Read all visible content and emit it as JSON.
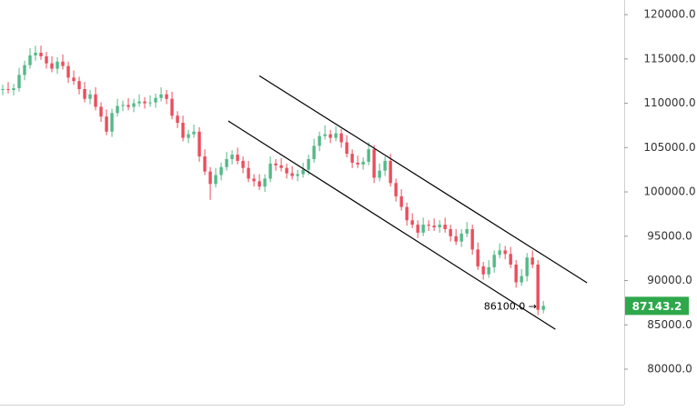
{
  "chart_data": {
    "type": "candlestick",
    "open": [
      111500,
      111600,
      111500,
      111700,
      113200,
      114300,
      115400,
      115700,
      115300,
      114500,
      113900,
      114700,
      114200,
      112900,
      112500,
      111600,
      110500,
      111000,
      109600,
      108500,
      106800,
      108900,
      109700,
      109800,
      109600,
      110000,
      110200,
      110000,
      110100,
      110600,
      111000,
      110500,
      108600,
      107800,
      106100,
      106500,
      106800,
      104000,
      102300,
      100900,
      101900,
      102800,
      103700,
      104200,
      103500,
      102700,
      101500,
      101200,
      100600,
      101500,
      103200,
      103000,
      102700,
      102100,
      101800,
      102000,
      102500,
      103700,
      105200,
      106300,
      106500,
      106100,
      106600,
      105600,
      104300,
      103300,
      103100,
      103400,
      104800,
      101600,
      102400,
      103500,
      101000,
      99500,
      98300,
      96800,
      96300,
      95400,
      96300,
      96200,
      96000,
      96300,
      95800,
      95000,
      94400,
      95300,
      95800,
      93500,
      91600,
      90700,
      91500,
      92900,
      93400,
      93000,
      91800,
      89800,
      90500,
      92600,
      91800,
      86700
    ],
    "high": [
      112100,
      112400,
      112200,
      114000,
      114800,
      116200,
      116500,
      116500,
      115800,
      115300,
      115200,
      115500,
      114700,
      113700,
      113000,
      112400,
      111500,
      111800,
      110100,
      109300,
      109400,
      110500,
      110300,
      110600,
      110500,
      111000,
      110700,
      110900,
      111100,
      111800,
      111500,
      111300,
      109100,
      108600,
      107000,
      107600,
      107300,
      104800,
      102800,
      102700,
      103300,
      104500,
      104700,
      105000,
      104000,
      103500,
      102000,
      102000,
      102000,
      104000,
      103700,
      103800,
      103200,
      102900,
      102500,
      103300,
      104200,
      106000,
      106800,
      107500,
      107000,
      107400,
      107100,
      106400,
      104800,
      104100,
      103900,
      105600,
      105300,
      103200,
      104000,
      104300,
      101500,
      100300,
      98800,
      97600,
      96800,
      97100,
      96800,
      97000,
      96800,
      97100,
      96300,
      95800,
      95800,
      96600,
      96300,
      94300,
      92100,
      92300,
      93400,
      94200,
      93900,
      93800,
      92300,
      91300,
      93100,
      93400,
      92300,
      87700
    ],
    "low": [
      110900,
      111100,
      110900,
      111300,
      112600,
      113900,
      114800,
      114900,
      113900,
      113500,
      113300,
      113800,
      112300,
      112100,
      111000,
      110100,
      109900,
      109200,
      107900,
      106400,
      106200,
      108500,
      109100,
      109200,
      109000,
      109600,
      109400,
      109600,
      109500,
      110200,
      109900,
      108200,
      107200,
      105700,
      105500,
      106100,
      103400,
      101900,
      99100,
      100500,
      101300,
      102400,
      103100,
      103100,
      102100,
      101100,
      100600,
      100200,
      100000,
      101100,
      102400,
      102300,
      101500,
      101400,
      101200,
      101600,
      101900,
      103300,
      104600,
      105900,
      105500,
      105700,
      105000,
      103900,
      102700,
      102700,
      102500,
      103000,
      101000,
      101200,
      101800,
      100600,
      98900,
      97900,
      96200,
      95900,
      94800,
      95000,
      95600,
      95600,
      95400,
      95400,
      94400,
      94000,
      93800,
      94900,
      92900,
      91200,
      90100,
      90300,
      90900,
      92500,
      92400,
      91400,
      89200,
      89400,
      89900,
      91400,
      86100,
      86300
    ],
    "close": [
      111600,
      111500,
      111700,
      113200,
      114300,
      115400,
      115700,
      115300,
      114500,
      113900,
      114700,
      114200,
      112900,
      112500,
      111600,
      110500,
      111000,
      109600,
      108500,
      106800,
      108900,
      109700,
      109800,
      109600,
      110000,
      110200,
      110000,
      110100,
      110600,
      111000,
      110500,
      108600,
      107800,
      106100,
      106500,
      106800,
      104000,
      102300,
      100900,
      101900,
      102800,
      103700,
      104200,
      103500,
      102700,
      101500,
      101200,
      100600,
      101500,
      103200,
      103000,
      102700,
      102100,
      101800,
      102000,
      102500,
      103700,
      105200,
      106300,
      106500,
      106100,
      106600,
      105600,
      104300,
      103300,
      103100,
      103400,
      104800,
      101600,
      102400,
      103500,
      101000,
      99500,
      98300,
      96800,
      96300,
      95400,
      96300,
      96200,
      96000,
      96300,
      95800,
      95000,
      94400,
      95300,
      95800,
      93500,
      91600,
      90700,
      91500,
      92900,
      93400,
      93000,
      91800,
      89800,
      90500,
      92600,
      91800,
      86700,
      87143.2
    ],
    "up_color": "#53b987",
    "down_color": "#eb4d5c",
    "xlim": [
      -0.5,
      113.8
    ],
    "ylim": [
      76000,
      121650
    ],
    "yticks": [
      {
        "value": 80000,
        "label": "80000.0"
      },
      {
        "value": 85000,
        "label": "85000.0"
      },
      {
        "value": 90000,
        "label": "90000.0"
      },
      {
        "value": 95000,
        "label": "95000.0"
      },
      {
        "value": 100000,
        "label": "100000.0"
      },
      {
        "value": 105000,
        "label": "105000.0"
      },
      {
        "value": 110000,
        "label": "110000.0"
      },
      {
        "value": 115000,
        "label": "115000.0"
      },
      {
        "value": 120000,
        "label": "120000.0"
      }
    ],
    "last_price": 87143.2,
    "last_price_color": "#2ea84a",
    "annotations": [
      {
        "label": "86100.0 →",
        "value": 86100
      }
    ],
    "trendlines": [
      {
        "x": [
          47,
          107
        ],
        "y": [
          113100,
          89750
        ],
        "color": "#000000"
      },
      {
        "x": [
          41.3,
          101.2
        ],
        "y": [
          108000,
          84500
        ],
        "color": "#000000"
      }
    ]
  }
}
